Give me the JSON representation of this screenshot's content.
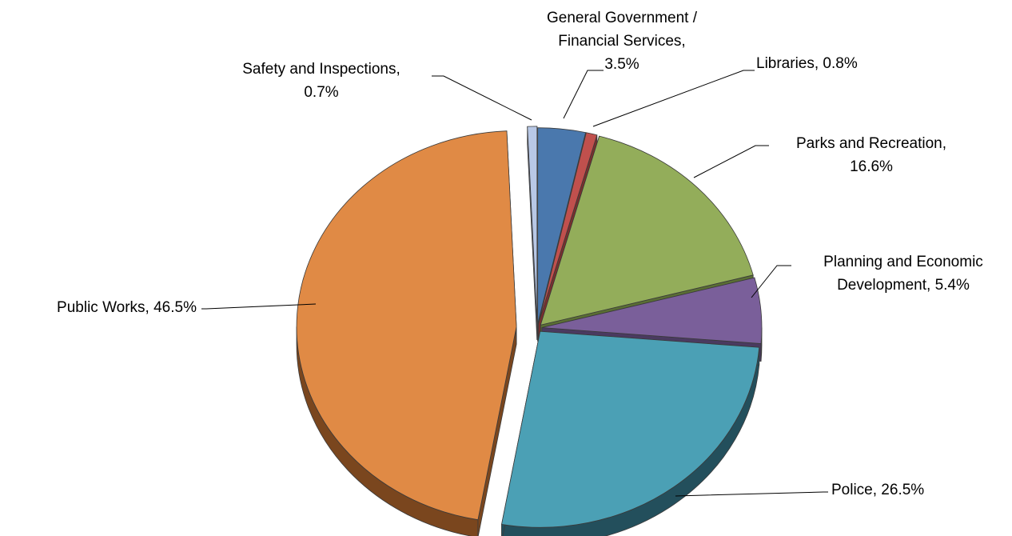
{
  "chart_data": {
    "type": "pie",
    "style": "3d-exploded",
    "legend": "none",
    "slices": [
      {
        "name": "General Government / Financial Services",
        "value": 3.5,
        "label_lines": [
          "General Government /",
          "Financial Services,",
          "3.5%"
        ],
        "color": "#4a78ad",
        "side": "#2e4d73"
      },
      {
        "name": "Libraries",
        "value": 0.8,
        "label_lines": [
          "Libraries, 0.8%"
        ],
        "color": "#c0504d",
        "side": "#7a2f2d"
      },
      {
        "name": "Parks and Recreation",
        "value": 16.6,
        "label_lines": [
          "Parks and Recreation,",
          "16.6%"
        ],
        "color": "#93ad5a",
        "side": "#5a6e34"
      },
      {
        "name": "Planning and Economic Development",
        "value": 5.4,
        "label_lines": [
          "Planning and Economic",
          "Development, 5.4%"
        ],
        "color": "#7a5f9a",
        "side": "#4a3a60"
      },
      {
        "name": "Police",
        "value": 26.5,
        "label_lines": [
          "Police, 26.5%"
        ],
        "color": "#4ba0b5",
        "side": "#234f5c"
      },
      {
        "name": "Public Works",
        "value": 46.5,
        "label_lines": [
          "Public Works, 46.5%"
        ],
        "color": "#e08a45",
        "side": "#7a461e"
      },
      {
        "name": "Safety and Inspections",
        "value": 0.7,
        "label_lines": [
          "Safety and Inspections,",
          "0.7%"
        ],
        "color": "#b8c8e6",
        "side": "#6f7fa0"
      }
    ]
  }
}
